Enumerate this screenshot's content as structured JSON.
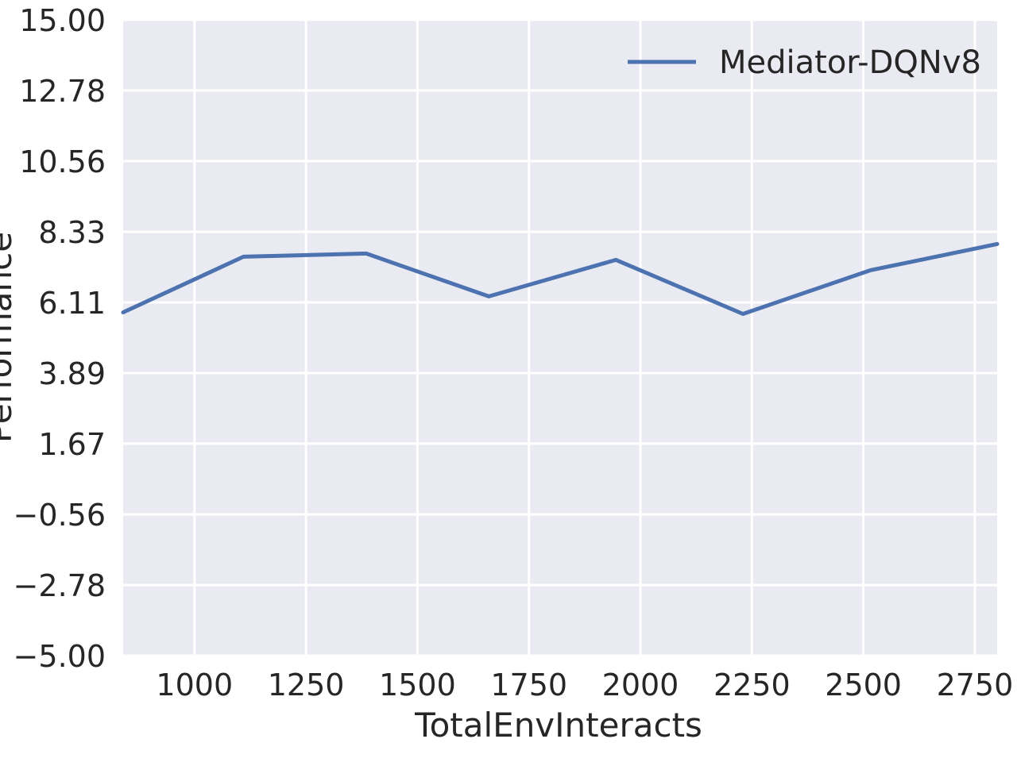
{
  "chart_data": {
    "type": "line",
    "title": "",
    "xlabel": "TotalEnvInteracts",
    "ylabel": "Performance",
    "xlim": [
      840,
      2800
    ],
    "ylim": [
      -5.0,
      15.0
    ],
    "x_ticks": [
      1000,
      1250,
      1500,
      1750,
      2000,
      2250,
      2500,
      2750
    ],
    "x_tick_labels": [
      "1000",
      "1250",
      "1500",
      "1750",
      "2000",
      "2250",
      "2500",
      "2750"
    ],
    "y_ticks": [
      -5.0,
      -2.78,
      -0.56,
      1.67,
      3.89,
      6.11,
      8.33,
      10.56,
      12.78,
      15.0
    ],
    "y_tick_labels": [
      "−5.00",
      "−2.78",
      "−0.56",
      "1.67",
      "3.89",
      "6.11",
      "8.33",
      "10.56",
      "12.78",
      "15.00"
    ],
    "grid": true,
    "legend_position": "top-right",
    "background_color": "#EAEAF2",
    "grid_color": "#FFFFFF",
    "series": [
      {
        "name": "Mediator-DQNv8",
        "color": "#4C72B0",
        "x": [
          840,
          1110,
          1385,
          1660,
          1945,
          2230,
          2515,
          2800
        ],
        "y": [
          5.8,
          7.55,
          7.65,
          6.3,
          7.45,
          5.75,
          7.12,
          7.95
        ]
      }
    ]
  }
}
